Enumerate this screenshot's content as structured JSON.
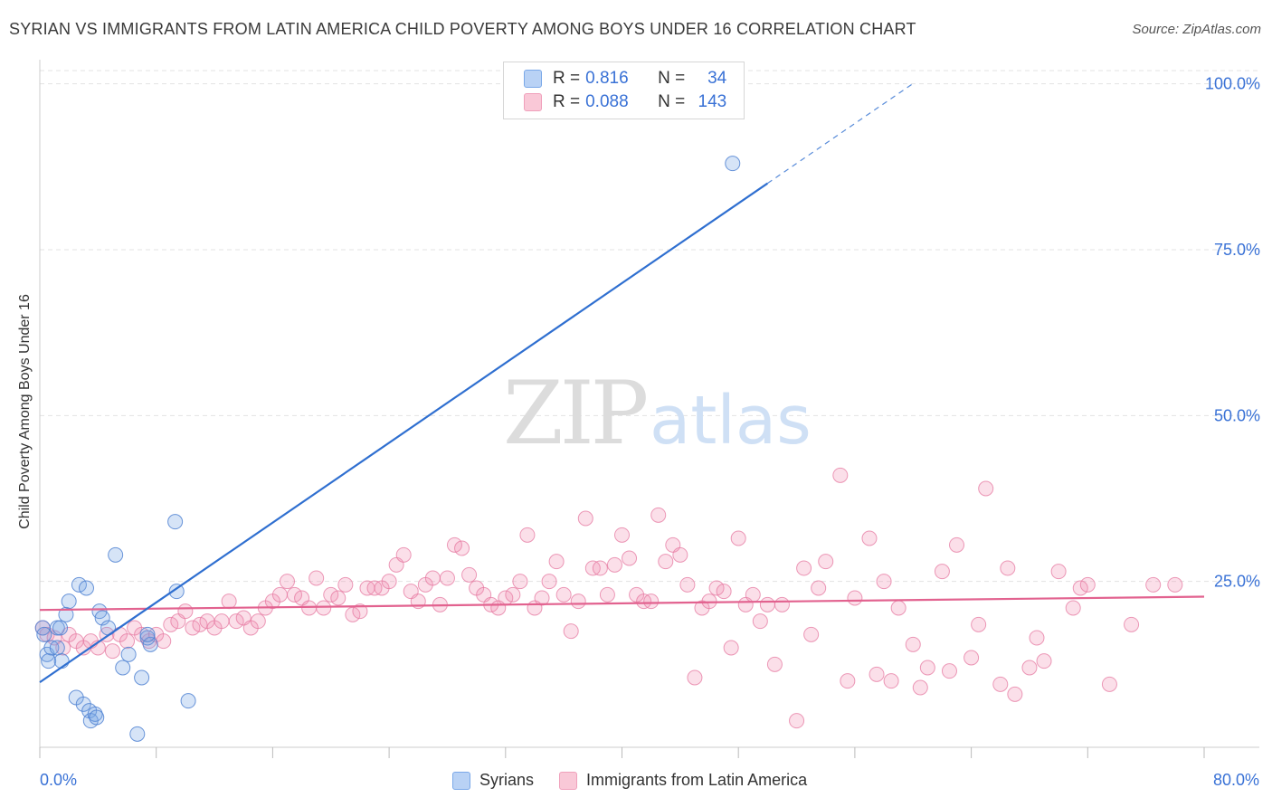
{
  "title": "SYRIAN VS IMMIGRANTS FROM LATIN AMERICA CHILD POVERTY AMONG BOYS UNDER 16 CORRELATION CHART",
  "source": "Source: ZipAtlas.com",
  "watermark": {
    "zip": "ZIP",
    "atlas": "atlas"
  },
  "legend_top": {
    "rows": [
      {
        "r_label": "R =",
        "r_value": "0.816",
        "n_label": "N =",
        "n_value": "34"
      },
      {
        "r_label": "R =",
        "r_value": "0.088",
        "n_label": "N =",
        "n_value": "143"
      }
    ]
  },
  "legend_bottom": {
    "syrians": "Syrians",
    "latin": "Immigrants from Latin America"
  },
  "x_tick_labels": {
    "left": "0.0%",
    "right": "80.0%"
  },
  "chart_data": {
    "type": "scatter",
    "title": "SYRIAN VS IMMIGRANTS FROM LATIN AMERICA CHILD POVERTY AMONG BOYS UNDER 16 CORRELATION CHART",
    "xlabel": "",
    "ylabel": "Child Poverty Among Boys Under 16",
    "xlim": [
      0,
      80
    ],
    "ylim": [
      0,
      102
    ],
    "y_ticks": [
      {
        "value": 25,
        "label": "25.0%"
      },
      {
        "value": 50,
        "label": "50.0%"
      },
      {
        "value": 75,
        "label": "75.0%"
      },
      {
        "value": 100,
        "label": "100.0%"
      }
    ],
    "x_tick_values": [
      0,
      8,
      16,
      24,
      32,
      40,
      48,
      56,
      64,
      72,
      80
    ],
    "grid": "horizontal dashed",
    "colors": {
      "syrians": "#7aa8e8",
      "syrians_line": "#2f6fd0",
      "latin": "#f0a0bb",
      "latin_line": "#e2628f",
      "tick_text": "#3a72d6"
    },
    "series": [
      {
        "name": "Syrians",
        "trend": {
          "x0": 0,
          "y0": 9.8,
          "x1": 50,
          "y1": 85,
          "dashed_to_x": 60
        },
        "points": [
          [
            0.2,
            18
          ],
          [
            0.3,
            17
          ],
          [
            0.5,
            14
          ],
          [
            0.6,
            13
          ],
          [
            0.8,
            15
          ],
          [
            1.2,
            15
          ],
          [
            1.2,
            18
          ],
          [
            1.4,
            18
          ],
          [
            1.5,
            13
          ],
          [
            1.8,
            20
          ],
          [
            2,
            22
          ],
          [
            2.5,
            7.5
          ],
          [
            2.7,
            24.5
          ],
          [
            3,
            6.5
          ],
          [
            3.2,
            24
          ],
          [
            3.4,
            5.5
          ],
          [
            3.5,
            4
          ],
          [
            3.8,
            5
          ],
          [
            3.9,
            4.5
          ],
          [
            4.1,
            20.5
          ],
          [
            4.3,
            19.5
          ],
          [
            4.7,
            18
          ],
          [
            5.2,
            29
          ],
          [
            5.7,
            12
          ],
          [
            6.1,
            14
          ],
          [
            6.7,
            2
          ],
          [
            7,
            10.5
          ],
          [
            7.4,
            16.5
          ],
          [
            7.6,
            15.5
          ],
          [
            9.3,
            34
          ],
          [
            9.4,
            23.5
          ],
          [
            10.2,
            7
          ],
          [
            47.6,
            88
          ],
          [
            7.4,
            17
          ]
        ]
      },
      {
        "name": "Immigrants from Latin America",
        "trend": {
          "x0": 0,
          "y0": 20.7,
          "x1": 80,
          "y1": 22.7
        },
        "points": [
          [
            0.2,
            18
          ],
          [
            0.5,
            17
          ],
          [
            1,
            16.5
          ],
          [
            1.6,
            15
          ],
          [
            2,
            17
          ],
          [
            2.5,
            16
          ],
          [
            3,
            15
          ],
          [
            3.5,
            16
          ],
          [
            4,
            15
          ],
          [
            4.6,
            17
          ],
          [
            5,
            14.5
          ],
          [
            5.5,
            17
          ],
          [
            6,
            16
          ],
          [
            6.5,
            18
          ],
          [
            7,
            17
          ],
          [
            7.5,
            16
          ],
          [
            8,
            17
          ],
          [
            8.5,
            16
          ],
          [
            9,
            18.5
          ],
          [
            9.5,
            19
          ],
          [
            10,
            20.5
          ],
          [
            10.5,
            18
          ],
          [
            11,
            18.5
          ],
          [
            11.5,
            19
          ],
          [
            12,
            18
          ],
          [
            12.5,
            19
          ],
          [
            13,
            22
          ],
          [
            13.5,
            19
          ],
          [
            14,
            19.5
          ],
          [
            14.5,
            18
          ],
          [
            15,
            19
          ],
          [
            15.5,
            21
          ],
          [
            16,
            22
          ],
          [
            16.5,
            23
          ],
          [
            17,
            25
          ],
          [
            17.5,
            23
          ],
          [
            18,
            22.5
          ],
          [
            18.5,
            21
          ],
          [
            19,
            25.5
          ],
          [
            19.5,
            21
          ],
          [
            20,
            23
          ],
          [
            20.5,
            22.5
          ],
          [
            21,
            24.5
          ],
          [
            21.5,
            20
          ],
          [
            22,
            20.5
          ],
          [
            22.5,
            24
          ],
          [
            23,
            24
          ],
          [
            23.5,
            24
          ],
          [
            24,
            25
          ],
          [
            24.5,
            27.5
          ],
          [
            25,
            29
          ],
          [
            25.5,
            23.5
          ],
          [
            26,
            22
          ],
          [
            26.5,
            24.5
          ],
          [
            27,
            25.5
          ],
          [
            27.5,
            21.5
          ],
          [
            28,
            25.5
          ],
          [
            28.5,
            30.5
          ],
          [
            29,
            30
          ],
          [
            29.5,
            26
          ],
          [
            30,
            24
          ],
          [
            30.5,
            23
          ],
          [
            31,
            21.5
          ],
          [
            31.5,
            21
          ],
          [
            32,
            22.5
          ],
          [
            32.5,
            23
          ],
          [
            33,
            25
          ],
          [
            33.5,
            32
          ],
          [
            34,
            21
          ],
          [
            34.5,
            22.5
          ],
          [
            35,
            25
          ],
          [
            35.5,
            28
          ],
          [
            36,
            23
          ],
          [
            36.5,
            17.5
          ],
          [
            37,
            22
          ],
          [
            37.5,
            34.5
          ],
          [
            38,
            27
          ],
          [
            38.5,
            27
          ],
          [
            39,
            23
          ],
          [
            39.5,
            27.5
          ],
          [
            40,
            32
          ],
          [
            40.5,
            28.5
          ],
          [
            41,
            23
          ],
          [
            41.5,
            22
          ],
          [
            42,
            22
          ],
          [
            42.5,
            35
          ],
          [
            43,
            28
          ],
          [
            43.5,
            30.5
          ],
          [
            44,
            29
          ],
          [
            44.5,
            24.5
          ],
          [
            45,
            10.5
          ],
          [
            45.5,
            21
          ],
          [
            46,
            22
          ],
          [
            46.5,
            24
          ],
          [
            47,
            23.5
          ],
          [
            47.5,
            15
          ],
          [
            48,
            31.5
          ],
          [
            48.5,
            21.5
          ],
          [
            49,
            23
          ],
          [
            49.5,
            19
          ],
          [
            50,
            21.5
          ],
          [
            50.5,
            12.5
          ],
          [
            51,
            21.5
          ],
          [
            52,
            4
          ],
          [
            52.5,
            27
          ],
          [
            53,
            17
          ],
          [
            53.5,
            24
          ],
          [
            54,
            28
          ],
          [
            55,
            41
          ],
          [
            55.5,
            10
          ],
          [
            56,
            22.5
          ],
          [
            57,
            31.5
          ],
          [
            57.5,
            11
          ],
          [
            58,
            25
          ],
          [
            58.5,
            10
          ],
          [
            59,
            21
          ],
          [
            60,
            15.5
          ],
          [
            60.5,
            9
          ],
          [
            61,
            12
          ],
          [
            62,
            26.5
          ],
          [
            62.5,
            11.5
          ],
          [
            63,
            30.5
          ],
          [
            64,
            13.5
          ],
          [
            64.5,
            18.5
          ],
          [
            65,
            39
          ],
          [
            66,
            9.5
          ],
          [
            66.5,
            27
          ],
          [
            67,
            8
          ],
          [
            68,
            12
          ],
          [
            68.5,
            16.5
          ],
          [
            69,
            13
          ],
          [
            70,
            26.5
          ],
          [
            71,
            21
          ],
          [
            71.5,
            24
          ],
          [
            72,
            24.5
          ],
          [
            75,
            18.5
          ],
          [
            76.5,
            24.5
          ],
          [
            78,
            24.5
          ],
          [
            73.5,
            9.5
          ]
        ]
      }
    ]
  }
}
